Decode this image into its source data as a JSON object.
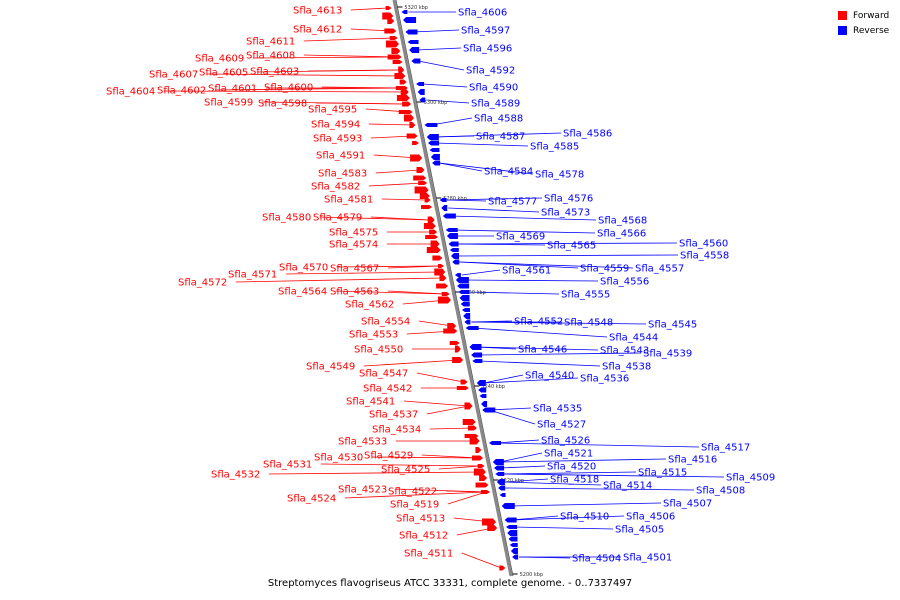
{
  "legend": [
    {
      "label": "Forward",
      "color": "#ff0000"
    },
    {
      "label": "Reverse",
      "color": "#0000ff"
    }
  ],
  "caption": "Streptomyces flavogriseus ATCC 33331, complete genome. - 0..7337497",
  "axis_ticks": [
    "5320 kbp",
    "5300 kbp",
    "5280 kbp",
    "5260 kbp",
    "5240 kbp",
    "5220 kbp",
    "5200 kbp"
  ],
  "colors": {
    "forward": "#ff0000",
    "reverse": "#0000ff",
    "axis": "#888888"
  },
  "forward_genes": [
    "Sfla_4613",
    "Sfla_4612",
    "Sfla_4611",
    "Sfla_4609",
    "Sfla_4608",
    "Sfla_4607",
    "Sfla_4605",
    "Sfla_4603",
    "Sfla_4604",
    "Sfla_4602",
    "Sfla_4601",
    "Sfla_4600",
    "Sfla_4599",
    "Sfla_4598",
    "Sfla_4595",
    "Sfla_4594",
    "Sfla_4593",
    "Sfla_4591",
    "Sfla_4583",
    "Sfla_4582",
    "Sfla_4581",
    "Sfla_4580",
    "Sfla_4579",
    "Sfla_4575",
    "Sfla_4574",
    "Sfla_4571",
    "Sfla_4570",
    "Sfla_4567",
    "Sfla_4572",
    "Sfla_4564",
    "Sfla_4563",
    "Sfla_4562",
    "Sfla_4554",
    "Sfla_4553",
    "Sfla_4550",
    "Sfla_4549",
    "Sfla_4547",
    "Sfla_4542",
    "Sfla_4541",
    "Sfla_4537",
    "Sfla_4534",
    "Sfla_4533",
    "Sfla_4531",
    "Sfla_4530",
    "Sfla_4529",
    "Sfla_4532",
    "Sfla_4525",
    "Sfla_4523",
    "Sfla_4522",
    "Sfla_4524",
    "Sfla_4519",
    "Sfla_4513",
    "Sfla_4512",
    "Sfla_4511"
  ],
  "reverse_genes": [
    "Sfla_4606",
    "Sfla_4597",
    "Sfla_4596",
    "Sfla_4592",
    "Sfla_4590",
    "Sfla_4589",
    "Sfla_4588",
    "Sfla_4587",
    "Sfla_4586",
    "Sfla_4585",
    "Sfla_4584",
    "Sfla_4578",
    "Sfla_4577",
    "Sfla_4576",
    "Sfla_4573",
    "Sfla_4568",
    "Sfla_4569",
    "Sfla_4566",
    "Sfla_4565",
    "Sfla_4560",
    "Sfla_4558",
    "Sfla_4561",
    "Sfla_4559",
    "Sfla_4557",
    "Sfla_4556",
    "Sfla_4555",
    "Sfla_4552",
    "Sfla_4548",
    "Sfla_4545",
    "Sfla_4544",
    "Sfla_4546",
    "Sfla_4543",
    "Sfla_4539",
    "Sfla_4538",
    "Sfla_4540",
    "Sfla_4536",
    "Sfla_4535",
    "Sfla_4527",
    "Sfla_4526",
    "Sfla_4517",
    "Sfla_4521",
    "Sfla_4516",
    "Sfla_4520",
    "Sfla_4515",
    "Sfla_4518",
    "Sfla_4514",
    "Sfla_4509",
    "Sfla_4508",
    "Sfla_4507",
    "Sfla_4510",
    "Sfla_4506",
    "Sfla_4505",
    "Sfla_4504",
    "Sfla_4501"
  ]
}
